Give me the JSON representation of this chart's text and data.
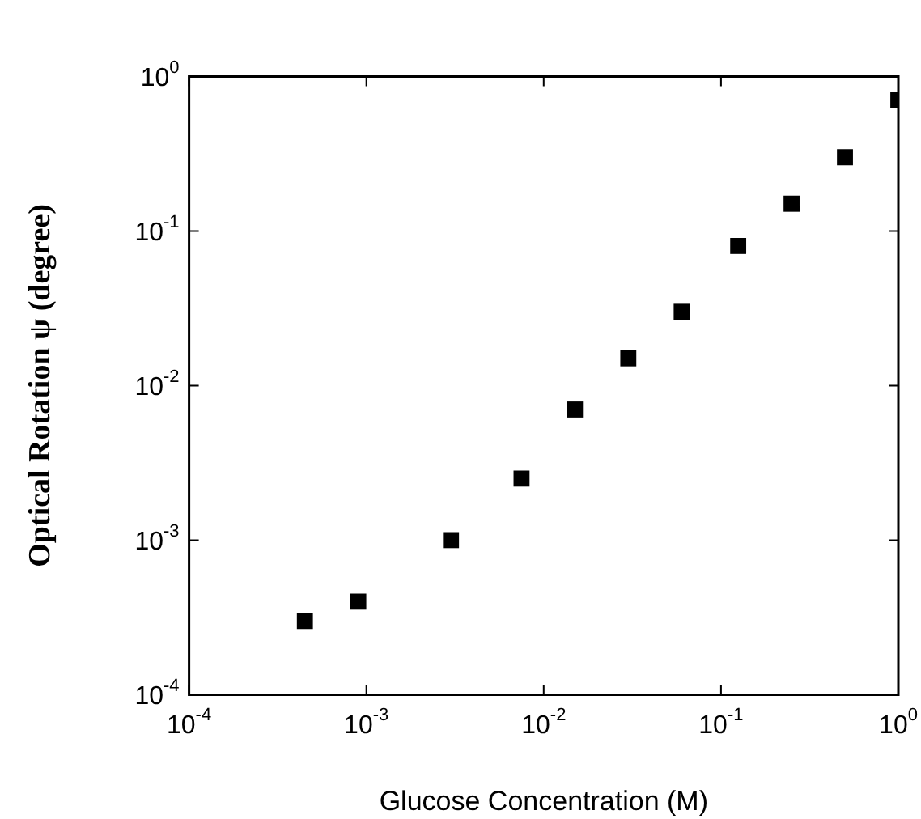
{
  "chart_data": {
    "type": "scatter",
    "xlabel": "Glucose Concentration (M)",
    "ylabel": "Optical Rotation ψ (degree)",
    "x": [
      0.00045,
      0.0009,
      0.003,
      0.0075,
      0.015,
      0.03,
      0.06,
      0.125,
      0.25,
      0.5,
      1.0
    ],
    "series": [
      {
        "color": "#000000",
        "values": [
          0.0003,
          0.0004,
          0.001,
          0.0025,
          0.007,
          0.015,
          0.03,
          0.08,
          0.15,
          0.3,
          0.7
        ]
      }
    ],
    "log": "xy",
    "marker": "square",
    "grid": false,
    "legend": false,
    "xlim": [
      0.0001,
      1
    ],
    "ylim": [
      0.0001,
      1
    ],
    "xticks": [
      {
        "value": 0.0001,
        "label": "10$^{-4}$"
      },
      {
        "value": 0.001,
        "label": "10$^{-3}$"
      },
      {
        "value": 0.01,
        "label": "10$^{-2}$"
      },
      {
        "value": 0.1,
        "label": "10$^{-1}$"
      },
      {
        "value": 1,
        "label": "10$^{0}$"
      }
    ],
    "yticks": [
      {
        "value": 0.0001,
        "label": "10$^{-4}$"
      },
      {
        "value": 0.001,
        "label": "10$^{-3}$"
      },
      {
        "value": 0.01,
        "label": "10$^{-2}$"
      },
      {
        "value": 0.1,
        "label": "10$^{-1}$"
      },
      {
        "value": 1,
        "label": "10$^{0}$"
      }
    ]
  }
}
